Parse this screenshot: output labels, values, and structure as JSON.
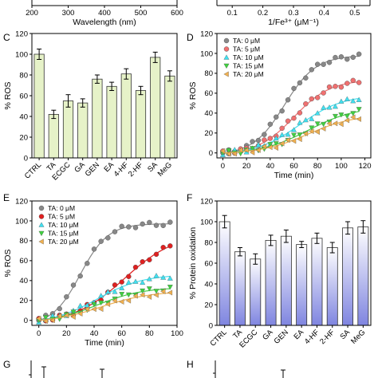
{
  "chart_data": [
    {
      "panel": "top-left",
      "type": "line",
      "partial": true,
      "xlabel": "Wavelength (nm)",
      "xticks": [
        "200",
        "300",
        "400",
        "500",
        "600"
      ],
      "xlim": [
        200,
        600
      ]
    },
    {
      "panel": "top-right",
      "type": "line",
      "partial": true,
      "xlabel": "1/Fe³⁺ (μM⁻¹)",
      "xticks": [
        "0.1",
        "0.2",
        "0.3",
        "0.4",
        "0.5"
      ],
      "xlim": [
        0.05,
        0.55
      ]
    },
    {
      "panel": "C",
      "type": "bar",
      "ylabel": "% ROS",
      "ylim": [
        0,
        120
      ],
      "yticks": [
        "0",
        "20",
        "40",
        "60",
        "80",
        "100",
        "120"
      ],
      "categories": [
        "CTRL",
        "TA",
        "ECGC",
        "GA",
        "GEN",
        "EA",
        "4-HF",
        "2-HF",
        "SA",
        "MeG"
      ],
      "values": [
        100,
        42,
        55,
        53,
        76,
        69,
        81,
        65,
        97,
        79
      ],
      "errors": [
        5,
        4,
        6,
        4,
        4,
        4,
        5,
        4,
        5,
        5
      ],
      "bar_color": "#e6f2c8"
    },
    {
      "panel": "D",
      "type": "scatter",
      "xlabel": "Time (min)",
      "ylabel": "% ROS",
      "xlim": [
        -5,
        125
      ],
      "ylim": [
        -5,
        120
      ],
      "xticks": [
        "0",
        "20",
        "40",
        "60",
        "80",
        "100",
        "120"
      ],
      "yticks": [
        "0",
        "20",
        "40",
        "60",
        "80",
        "100",
        "120"
      ],
      "legend_position": "top-left",
      "x": [
        0,
        5,
        10,
        15,
        20,
        25,
        30,
        35,
        40,
        45,
        50,
        55,
        60,
        65,
        70,
        75,
        80,
        85,
        90,
        95,
        100,
        105,
        110,
        115
      ],
      "series": [
        {
          "name": "TA: 0 μM",
          "color": "#888888",
          "marker": "circle",
          "fit_max": 100,
          "fit_mid": 52,
          "fit_k": 0.075
        },
        {
          "name": "TA: 5 μM",
          "color": "#f07070",
          "marker": "circle",
          "fit_max": 75,
          "fit_mid": 60,
          "fit_k": 0.065
        },
        {
          "name": "TA: 10 μM",
          "color": "#40e0f0",
          "marker": "triangle-up",
          "fit_max": 60,
          "fit_mid": 65,
          "fit_k": 0.055
        },
        {
          "name": "TA: 15 μM",
          "color": "#40d040",
          "marker": "triangle-down",
          "fit_max": 48,
          "fit_mid": 72,
          "fit_k": 0.05
        },
        {
          "name": "TA: 20 μM",
          "color": "#f0b050",
          "marker": "triangle-left",
          "fit_max": 40,
          "fit_mid": 72,
          "fit_k": 0.05
        }
      ]
    },
    {
      "panel": "E",
      "type": "scatter",
      "xlabel": "Time (min)",
      "ylabel": "% ROS",
      "xlim": [
        -5,
        100
      ],
      "ylim": [
        -5,
        120
      ],
      "xticks": [
        "0",
        "20",
        "40",
        "60",
        "80",
        "100"
      ],
      "yticks": [
        "0",
        "20",
        "40",
        "60",
        "80",
        "100",
        "120"
      ],
      "legend_position": "top-left",
      "x": [
        0,
        5,
        10,
        15,
        20,
        25,
        30,
        35,
        40,
        45,
        50,
        55,
        60,
        65,
        70,
        75,
        80,
        85,
        90,
        95
      ],
      "series": [
        {
          "name": "TA: 0 μM",
          "color": "#888888",
          "marker": "circle",
          "fit_max": 102,
          "fit_mid": 30,
          "fit_k": 0.1
        },
        {
          "name": "TA: 5 μM",
          "color": "#e02020",
          "marker": "circle",
          "fit_max": 90,
          "fit_mid": 62,
          "fit_k": 0.055
        },
        {
          "name": "TA: 10 μM",
          "color": "#40e0f0",
          "marker": "triangle-up",
          "fit_max": 50,
          "fit_mid": 42,
          "fit_k": 0.06
        },
        {
          "name": "TA: 15 μM",
          "color": "#40d040",
          "marker": "triangle-down",
          "fit_max": 36,
          "fit_mid": 42,
          "fit_k": 0.06
        },
        {
          "name": "TA: 20 μM",
          "color": "#f0b050",
          "marker": "triangle-left",
          "fit_max": 32,
          "fit_mid": 45,
          "fit_k": 0.055
        }
      ]
    },
    {
      "panel": "F",
      "type": "bar",
      "ylabel": "% Protein oxidation",
      "ylim": [
        0,
        120
      ],
      "yticks": [
        "0",
        "20",
        "40",
        "60",
        "80",
        "100",
        "120"
      ],
      "categories": [
        "CTRL",
        "TA",
        "ECGC",
        "GA",
        "GEN",
        "EA",
        "4-HF",
        "2-HF",
        "SA",
        "MeG"
      ],
      "values": [
        100,
        71,
        64,
        82,
        86,
        78,
        84,
        75,
        94,
        95
      ],
      "errors": [
        6,
        4,
        5,
        5,
        6,
        3,
        5,
        5,
        6,
        6
      ],
      "bar_gradient": [
        "#ffffff",
        "#7f85e0"
      ]
    },
    {
      "panel": "G",
      "type": "bar",
      "partial": true
    },
    {
      "panel": "H",
      "type": "bar",
      "partial": true
    }
  ],
  "labels": {
    "C": "C",
    "D": "D",
    "E": "E",
    "F": "F",
    "G": "G",
    "H": "H"
  }
}
